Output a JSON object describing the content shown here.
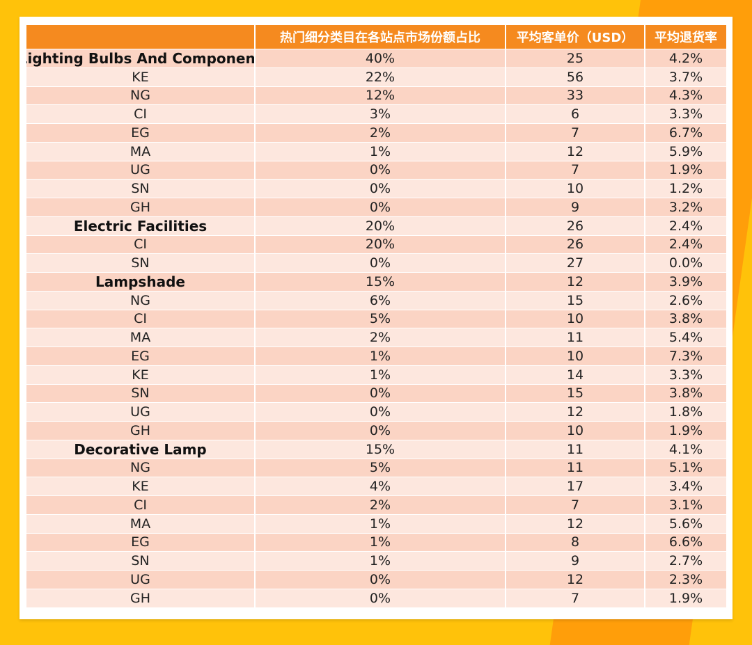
{
  "colors": {
    "background": "#FFC20A",
    "accent": "#FF9E0A",
    "header": "#F58A1F",
    "row_dark": "#FBD4C4",
    "row_light": "#FDE7DE"
  },
  "table": {
    "headers": [
      "",
      "热门细分类目在各站点市场份额占比",
      "平均客单价（USD）",
      "平均退货率"
    ],
    "rows": [
      {
        "name": "Lighting Bulbs And Component",
        "share": "40%",
        "price": "25",
        "return_rate": "4.2%",
        "category": true
      },
      {
        "name": "KE",
        "share": "22%",
        "price": "56",
        "return_rate": "3.7%",
        "category": false
      },
      {
        "name": "NG",
        "share": "12%",
        "price": "33",
        "return_rate": "4.3%",
        "category": false
      },
      {
        "name": "CI",
        "share": "3%",
        "price": "6",
        "return_rate": "3.3%",
        "category": false
      },
      {
        "name": "EG",
        "share": "2%",
        "price": "7",
        "return_rate": "6.7%",
        "category": false
      },
      {
        "name": "MA",
        "share": "1%",
        "price": "12",
        "return_rate": "5.9%",
        "category": false
      },
      {
        "name": "UG",
        "share": "0%",
        "price": "7",
        "return_rate": "1.9%",
        "category": false
      },
      {
        "name": "SN",
        "share": "0%",
        "price": "10",
        "return_rate": "1.2%",
        "category": false
      },
      {
        "name": "GH",
        "share": "0%",
        "price": "9",
        "return_rate": "3.2%",
        "category": false
      },
      {
        "name": "Electric Facilities",
        "share": "20%",
        "price": "26",
        "return_rate": "2.4%",
        "category": true
      },
      {
        "name": "CI",
        "share": "20%",
        "price": "26",
        "return_rate": "2.4%",
        "category": false
      },
      {
        "name": "SN",
        "share": "0%",
        "price": "27",
        "return_rate": "0.0%",
        "category": false
      },
      {
        "name": "Lampshade",
        "share": "15%",
        "price": "12",
        "return_rate": "3.9%",
        "category": true
      },
      {
        "name": "NG",
        "share": "6%",
        "price": "15",
        "return_rate": "2.6%",
        "category": false
      },
      {
        "name": "CI",
        "share": "5%",
        "price": "10",
        "return_rate": "3.8%",
        "category": false
      },
      {
        "name": "MA",
        "share": "2%",
        "price": "11",
        "return_rate": "5.4%",
        "category": false
      },
      {
        "name": "EG",
        "share": "1%",
        "price": "10",
        "return_rate": "7.3%",
        "category": false
      },
      {
        "name": "KE",
        "share": "1%",
        "price": "14",
        "return_rate": "3.3%",
        "category": false
      },
      {
        "name": "SN",
        "share": "0%",
        "price": "15",
        "return_rate": "3.8%",
        "category": false
      },
      {
        "name": "UG",
        "share": "0%",
        "price": "12",
        "return_rate": "1.8%",
        "category": false
      },
      {
        "name": "GH",
        "share": "0%",
        "price": "10",
        "return_rate": "1.9%",
        "category": false
      },
      {
        "name": "Decorative Lamp",
        "share": "15%",
        "price": "11",
        "return_rate": "4.1%",
        "category": true
      },
      {
        "name": "NG",
        "share": "5%",
        "price": "11",
        "return_rate": "5.1%",
        "category": false
      },
      {
        "name": "KE",
        "share": "4%",
        "price": "17",
        "return_rate": "3.4%",
        "category": false
      },
      {
        "name": "CI",
        "share": "2%",
        "price": "7",
        "return_rate": "3.1%",
        "category": false
      },
      {
        "name": "MA",
        "share": "1%",
        "price": "12",
        "return_rate": "5.6%",
        "category": false
      },
      {
        "name": "EG",
        "share": "1%",
        "price": "8",
        "return_rate": "6.6%",
        "category": false
      },
      {
        "name": "SN",
        "share": "1%",
        "price": "9",
        "return_rate": "2.7%",
        "category": false
      },
      {
        "name": "UG",
        "share": "0%",
        "price": "12",
        "return_rate": "2.3%",
        "category": false
      },
      {
        "name": "GH",
        "share": "0%",
        "price": "7",
        "return_rate": "1.9%",
        "category": false
      }
    ]
  }
}
